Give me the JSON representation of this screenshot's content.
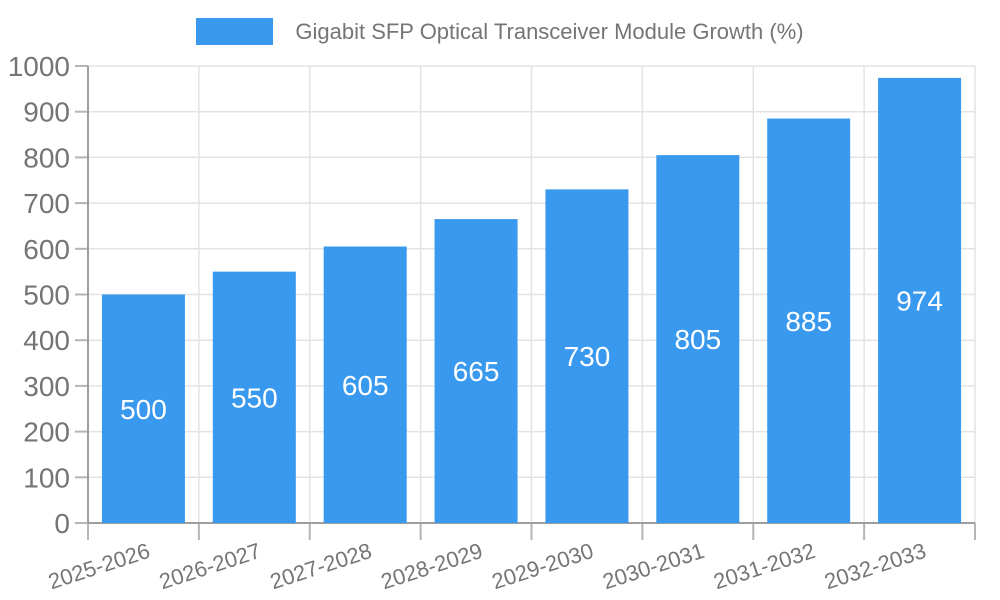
{
  "chart_data": {
    "type": "bar",
    "title": "Gigabit SFP Optical Transceiver Module Growth (%)",
    "categories": [
      "2025-2026",
      "2026-2027",
      "2027-2028",
      "2028-2029",
      "2029-2030",
      "2030-2031",
      "2031-2032",
      "2032-2033"
    ],
    "values": [
      500,
      550,
      605,
      665,
      730,
      805,
      885,
      974
    ],
    "xlabel": "",
    "ylabel": "",
    "ylim": [
      0,
      1000
    ],
    "yticks": [
      0,
      100,
      200,
      300,
      400,
      500,
      600,
      700,
      800,
      900,
      1000
    ],
    "grid": true,
    "legend_position": "top",
    "x_tick_rotation_deg": -18,
    "colors": {
      "bar": "#3999EE",
      "bar_value_label": "#FFFFFF",
      "tick_label": "#757575",
      "legend_text": "#757575",
      "tick_mark": "#B5B5B5",
      "grid": "#E3E3E3",
      "axis": "#9E9E9E",
      "background": "#FFFFFF"
    }
  }
}
